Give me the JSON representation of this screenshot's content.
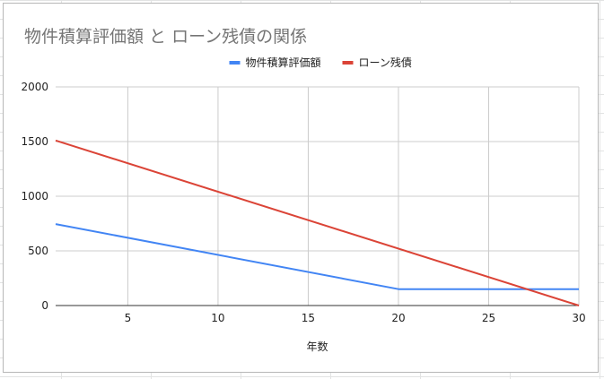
{
  "chart_data": {
    "type": "line",
    "title": "物件積算評価額 と ローン残債の関係",
    "xlabel": "年数",
    "ylabel": "",
    "xlim": [
      1,
      30
    ],
    "ylim": [
      0,
      2000
    ],
    "x_ticks": [
      5,
      10,
      15,
      20,
      25,
      30
    ],
    "y_ticks": [
      0,
      500,
      1000,
      1500,
      2000
    ],
    "grid": true,
    "legend_position": "top",
    "series": [
      {
        "name": "物件積算評価額",
        "color": "#4285f4",
        "points": [
          [
            1,
            745
          ],
          [
            20,
            150
          ],
          [
            30,
            150
          ]
        ]
      },
      {
        "name": "ローン残債",
        "color": "#db4437",
        "points": [
          [
            1,
            1510
          ],
          [
            30,
            0
          ]
        ]
      }
    ]
  }
}
